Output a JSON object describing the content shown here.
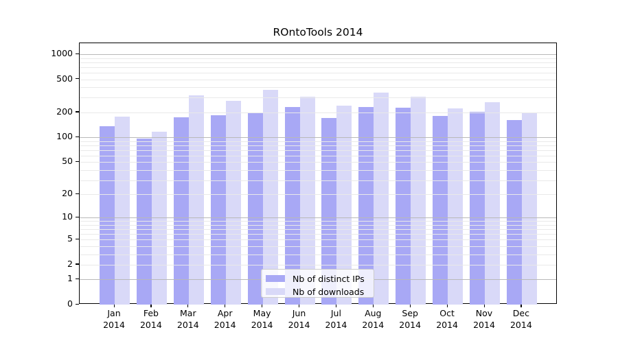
{
  "chart_data": {
    "type": "bar",
    "title": "ROntoTools 2014",
    "categories": [
      "Jan",
      "Feb",
      "Mar",
      "Apr",
      "May",
      "Jun",
      "Jul",
      "Aug",
      "Sep",
      "Oct",
      "Nov",
      "Dec"
    ],
    "year_label": "2014",
    "series": [
      {
        "name": "Nb of distinct IPs",
        "color": "#a8a8f5",
        "values": [
          135,
          96,
          176,
          183,
          196,
          230,
          172,
          233,
          229,
          180,
          204,
          163
        ]
      },
      {
        "name": "Nb of downloads",
        "color": "#d9d9f8",
        "values": [
          178,
          118,
          318,
          277,
          370,
          306,
          242,
          348,
          310,
          225,
          267,
          197
        ]
      }
    ],
    "yscale": "log1p",
    "yticks": [
      0,
      1,
      2,
      5,
      10,
      20,
      50,
      100,
      200,
      500,
      1000
    ],
    "ylim": [
      0,
      1350
    ],
    "xlabel": "",
    "ylabel": "",
    "grid": true,
    "legend_position": "inside-bottom-center"
  },
  "colors": {
    "background": "#ffffff",
    "axis": "#000000",
    "major_grid": "#b8b8b8",
    "minor_grid": "#e9e9e9",
    "tick_text": "#000000"
  }
}
